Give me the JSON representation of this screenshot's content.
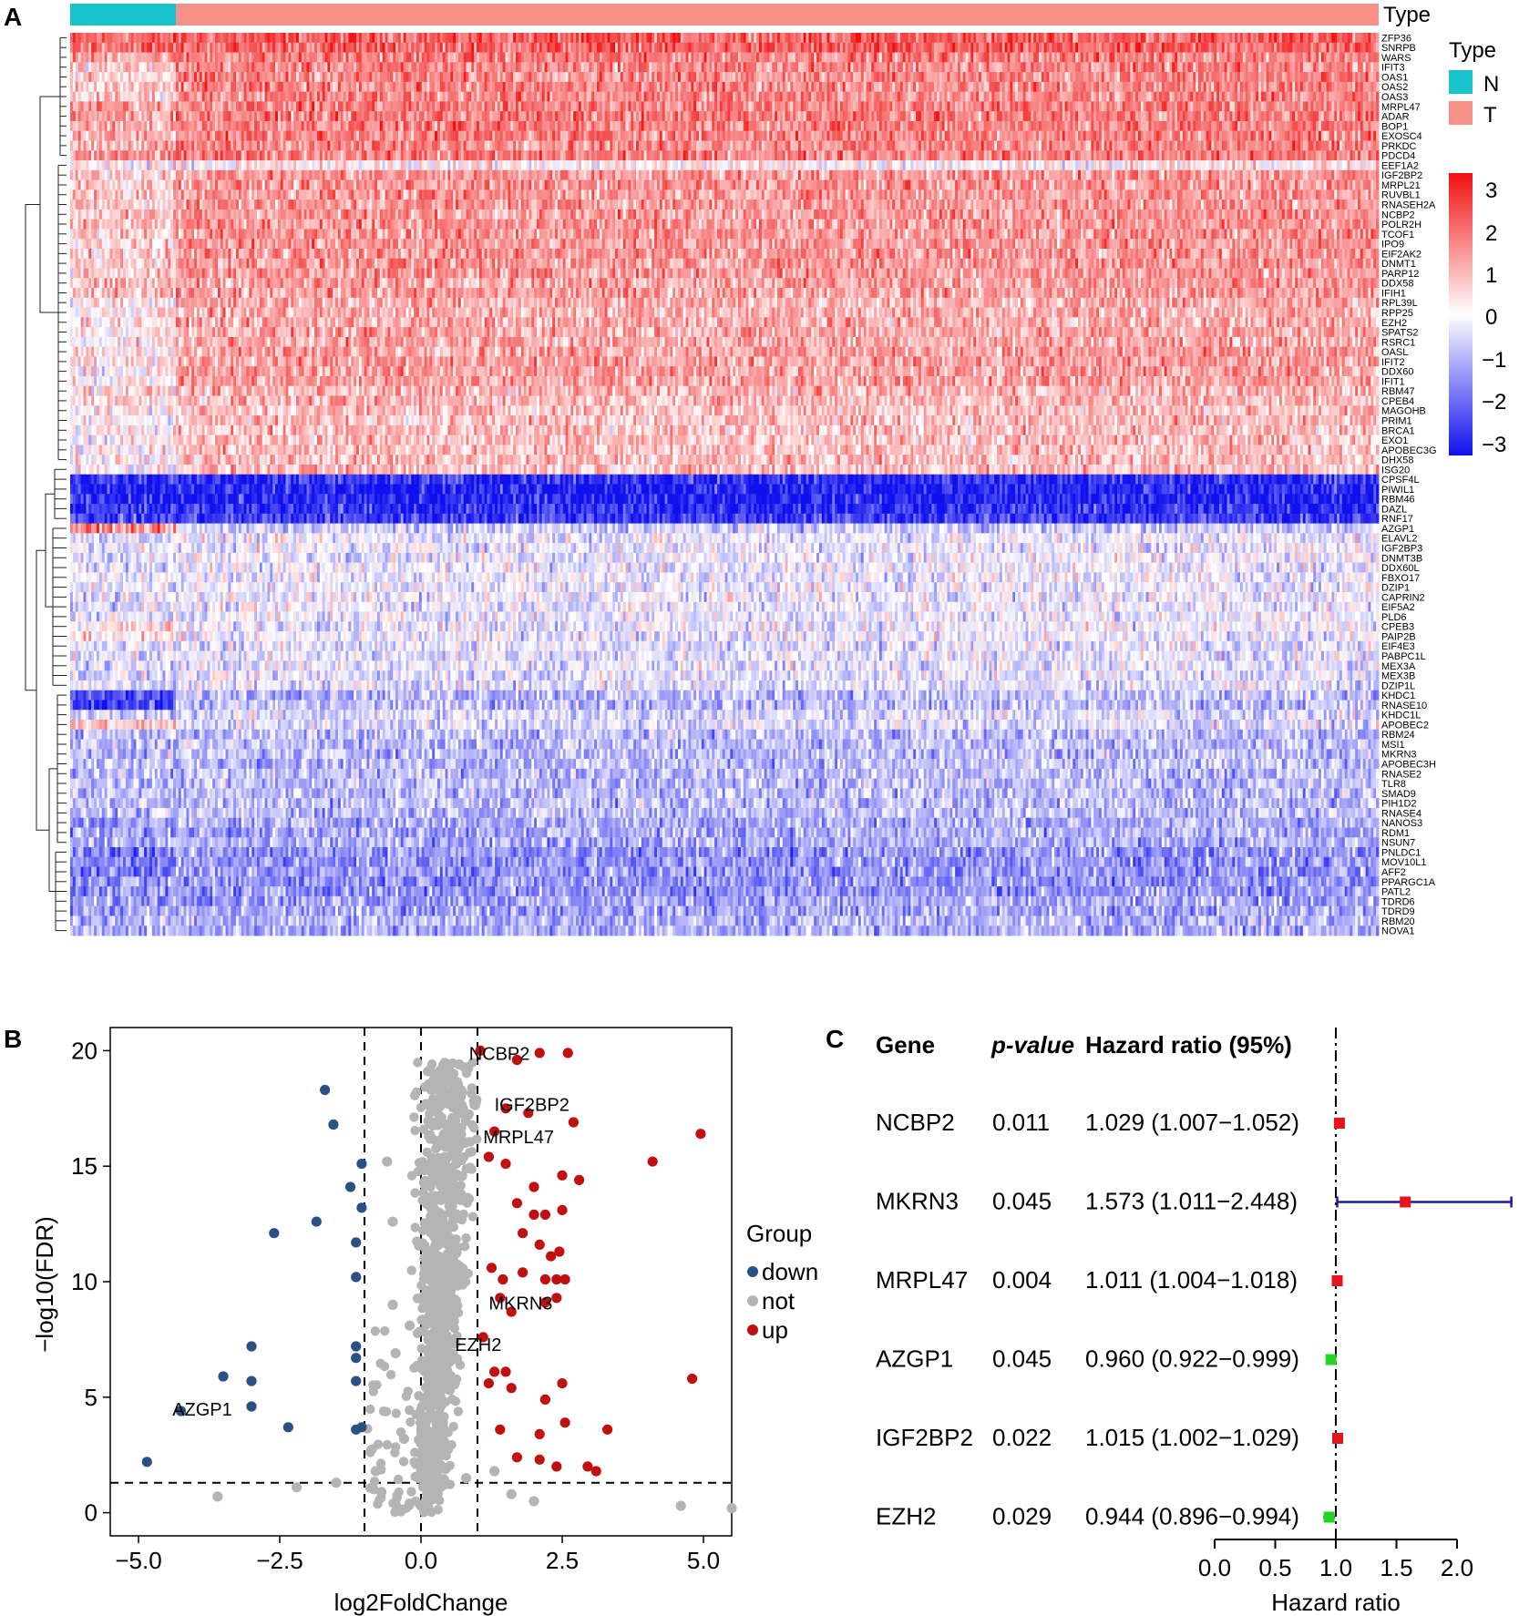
{
  "panels": {
    "a": "A",
    "b": "B",
    "c": "C"
  },
  "heatmap": {
    "type_label": "Type",
    "legend_title": "Type",
    "groups": [
      {
        "key": "N",
        "label": "N",
        "color": "#19c4cf"
      },
      {
        "key": "T",
        "label": "T",
        "color": "#f69089"
      }
    ],
    "colorbar_ticks": [
      "3",
      "2",
      "1",
      "0",
      "−1",
      "−2",
      "−3"
    ],
    "colorbar_colors": {
      "low": "#1010ee",
      "mid": "#ffffff",
      "high": "#f01010"
    },
    "genes": [
      "ZFP36",
      "SNRPB",
      "WARS",
      "IFIT3",
      "OAS1",
      "OAS2",
      "OAS3",
      "MRPL47",
      "ADAR",
      "BOP1",
      "EXOSC4",
      "PRKDC",
      "PDCD4",
      "EEF1A2",
      "IGF2BP2",
      "MRPL21",
      "RUVBL1",
      "RNASEH2A",
      "NCBP2",
      "POLR2H",
      "TCOF1",
      "IPO9",
      "EIF2AK2",
      "DNMT1",
      "PARP12",
      "DDX58",
      "IFIH1",
      "RPL39L",
      "RPP25",
      "EZH2",
      "SPATS2",
      "RSRC1",
      "OASL",
      "IFIT2",
      "DDX60",
      "IFIT1",
      "RBM47",
      "CPEB4",
      "MAGOHB",
      "PRIM1",
      "BRCA1",
      "EXO1",
      "APOBEC3G",
      "DHX58",
      "ISG20",
      "CPSF4L",
      "PIWIL1",
      "RBM46",
      "DAZL",
      "RNF17",
      "AZGP1",
      "ELAVL2",
      "IGF2BP3",
      "DNMT3B",
      "DDX60L",
      "FBXO17",
      "DZIP1",
      "CAPRIN2",
      "EIF5A2",
      "PLD6",
      "CPEB3",
      "PAIP2B",
      "EIF4E3",
      "PABPC1L",
      "MEX3A",
      "MEX3B",
      "DZIP1L",
      "KHDC1",
      "RNASE10",
      "KHDC1L",
      "APOBEC2",
      "RBM24",
      "MSI1",
      "MKRN3",
      "APOBEC3H",
      "RNASE2",
      "TLR8",
      "SMAD9",
      "PIH1D2",
      "RNASE4",
      "NANOS3",
      "RDM1",
      "NSUN7",
      "PNLDC1",
      "MOV10L1",
      "AFF2",
      "PPARGC1A",
      "PATL2",
      "TDRD6",
      "TDRD9",
      "RBM20",
      "NOVA1"
    ]
  },
  "chart_data": [
    {
      "type": "heatmap",
      "n_normal_samples": 40,
      "n_tumor_samples": 460,
      "rows": [
        "ZFP36",
        "SNRPB",
        "WARS",
        "IFIT3",
        "OAS1",
        "OAS2",
        "OAS3",
        "MRPL47",
        "ADAR",
        "BOP1",
        "EXOSC4",
        "PRKDC",
        "PDCD4",
        "EEF1A2",
        "IGF2BP2",
        "MRPL21",
        "RUVBL1",
        "RNASEH2A",
        "NCBP2",
        "POLR2H",
        "TCOF1",
        "IPO9",
        "EIF2AK2",
        "DNMT1",
        "PARP12",
        "DDX58",
        "IFIH1",
        "RPL39L",
        "RPP25",
        "EZH2",
        "SPATS2",
        "RSRC1",
        "OASL",
        "IFIT2",
        "DDX60",
        "IFIT1",
        "RBM47",
        "CPEB4",
        "MAGOHB",
        "PRIM1",
        "BRCA1",
        "EXO1",
        "APOBEC3G",
        "DHX58",
        "ISG20",
        "CPSF4L",
        "PIWIL1",
        "RBM46",
        "DAZL",
        "RNF17",
        "AZGP1",
        "ELAVL2",
        "IGF2BP3",
        "DNMT3B",
        "DDX60L",
        "FBXO17",
        "DZIP1",
        "CAPRIN2",
        "EIF5A2",
        "PLD6",
        "CPEB3",
        "PAIP2B",
        "EIF4E3",
        "PABPC1L",
        "MEX3A",
        "MEX3B",
        "DZIP1L",
        "KHDC1",
        "RNASE10",
        "KHDC1L",
        "APOBEC2",
        "RBM24",
        "MSI1",
        "MKRN3",
        "APOBEC3H",
        "RNASE2",
        "TLR8",
        "SMAD9",
        "PIH1D2",
        "RNASE4",
        "NANOS3",
        "RDM1",
        "NSUN7",
        "PNLDC1",
        "MOV10L1",
        "AFF2",
        "PPARGC1A",
        "PATL2",
        "TDRD6",
        "TDRD9",
        "RBM20",
        "NOVA1"
      ],
      "row_scores_normal": [
        1.8,
        1.9,
        1.2,
        0.6,
        0.6,
        0.6,
        0.6,
        1.2,
        1.2,
        1.0,
        1.0,
        1.0,
        1.3,
        0.2,
        0.7,
        0.7,
        0.7,
        0.7,
        0.7,
        0.7,
        0.7,
        0.7,
        0.7,
        0.7,
        0.7,
        0.7,
        0.7,
        0.4,
        0.4,
        0.4,
        0.3,
        0.2,
        0.2,
        0.2,
        0.2,
        0.2,
        0.5,
        0.6,
        0.2,
        0.1,
        0.1,
        0.1,
        0.1,
        0.1,
        0.1,
        -2.6,
        -2.8,
        -2.8,
        -2.6,
        -2.4,
        1.4,
        -0.3,
        -0.3,
        -0.3,
        -0.3,
        -0.3,
        -0.3,
        -0.3,
        -0.3,
        -0.3,
        0.4,
        0.4,
        -0.4,
        -0.4,
        -0.4,
        -0.4,
        -0.3,
        -2.3,
        -2.3,
        -0.6,
        0.7,
        -0.8,
        -0.8,
        -0.8,
        -0.8,
        -0.8,
        -0.8,
        -0.8,
        -0.8,
        -0.8,
        -1.2,
        -1.2,
        -1.0,
        -1.6,
        -1.6,
        -1.6,
        -1.4,
        -1.4,
        -1.2,
        -1.2,
        -0.9,
        -1.0
      ],
      "row_scores_tumor": [
        2.0,
        1.9,
        1.6,
        1.5,
        1.5,
        1.5,
        1.5,
        1.6,
        1.6,
        1.6,
        1.6,
        1.5,
        1.6,
        0.2,
        1.3,
        1.3,
        1.3,
        1.3,
        1.3,
        1.3,
        1.3,
        1.3,
        1.3,
        1.3,
        1.3,
        1.2,
        1.2,
        1.0,
        1.0,
        1.0,
        1.1,
        1.1,
        1.2,
        1.2,
        1.2,
        1.2,
        0.9,
        0.9,
        0.8,
        0.8,
        0.8,
        0.8,
        0.8,
        0.8,
        0.8,
        -2.6,
        -2.8,
        -2.8,
        -2.6,
        -2.4,
        -0.6,
        -0.2,
        -0.2,
        -0.2,
        -0.2,
        -0.2,
        -0.2,
        -0.2,
        -0.2,
        -0.2,
        -0.2,
        -0.2,
        -0.3,
        -0.3,
        -0.3,
        -0.3,
        -0.3,
        -0.8,
        -0.8,
        -0.4,
        -0.4,
        -0.8,
        -0.8,
        -0.8,
        -0.8,
        -0.8,
        -0.8,
        -0.8,
        -0.8,
        -0.8,
        -1.0,
        -1.0,
        -1.0,
        -1.3,
        -1.3,
        -1.3,
        -1.3,
        -1.3,
        -1.1,
        -1.1,
        -0.9,
        -1.0
      ],
      "color_range": [
        -3,
        3
      ],
      "legend_title": "Type",
      "legend": [
        "N",
        "T"
      ]
    },
    {
      "type": "scatter",
      "title": "",
      "xlabel": "log2FoldChange",
      "ylabel": "−log10(FDR)",
      "xlim": [
        -5.5,
        5.5
      ],
      "ylim": [
        -1,
        21
      ],
      "xticks": [
        -5.0,
        -2.5,
        0.0,
        2.5,
        5.0
      ],
      "xtick_labels": [
        "−5.0",
        "−2.5",
        "0.0",
        "2.5",
        "5.0"
      ],
      "yticks": [
        0,
        5,
        10,
        15,
        20
      ],
      "ytick_labels": [
        "0",
        "5",
        "10",
        "15",
        "20"
      ],
      "vlines": [
        -1,
        0,
        1
      ],
      "hline": 1.3,
      "legend_title": "Group",
      "legend": [
        "down",
        "not",
        "up"
      ],
      "colors": {
        "down": "#2b5184",
        "not": "#b4b4b4",
        "up": "#c01010"
      },
      "series": [
        {
          "name": "down",
          "points": [
            [
              -4.85,
              2.2
            ],
            [
              -4.25,
              4.4
            ],
            [
              -3.5,
              5.9
            ],
            [
              -3.0,
              7.2
            ],
            [
              -3.0,
              5.7
            ],
            [
              -3.0,
              4.6
            ],
            [
              -2.6,
              12.1
            ],
            [
              -2.35,
              3.7
            ],
            [
              -1.85,
              12.6
            ],
            [
              -1.7,
              18.3
            ],
            [
              -1.55,
              16.8
            ],
            [
              -1.25,
              14.1
            ],
            [
              -1.15,
              6.7
            ],
            [
              -1.15,
              11.7
            ],
            [
              -1.15,
              10.2
            ],
            [
              -1.15,
              5.7
            ],
            [
              -1.15,
              3.6
            ],
            [
              -1.15,
              7.2
            ],
            [
              -1.05,
              13.2
            ],
            [
              -1.05,
              3.7
            ],
            [
              -1.05,
              15.1
            ]
          ]
        },
        {
          "name": "not",
          "points": [
            [
              -3.6,
              0.7
            ],
            [
              -2.2,
              1.1
            ],
            [
              -1.5,
              1.3
            ],
            [
              -0.8,
              1.8
            ],
            [
              -0.6,
              15.2
            ],
            [
              -0.5,
              12.6
            ],
            [
              -0.5,
              9.0
            ],
            [
              -0.45,
              6.9
            ],
            [
              -0.3,
              3.2
            ],
            [
              -0.2,
              8.1
            ],
            [
              0.1,
              1.1
            ],
            [
              4.6,
              0.3
            ],
            [
              5.5,
              0.2
            ],
            [
              1.6,
              0.8
            ],
            [
              2.0,
              0.5
            ],
            [
              -0.2,
              0.4
            ],
            [
              -0.7,
              0.9
            ],
            [
              0.8,
              1.5
            ],
            [
              1.3,
              1.8
            ]
          ]
        },
        {
          "name": "up",
          "points": [
            [
              1.05,
              20.0
            ],
            [
              1.3,
              16.5
            ],
            [
              1.5,
              17.5
            ],
            [
              1.7,
              19.6
            ],
            [
              1.9,
              17.3
            ],
            [
              2.1,
              19.9
            ],
            [
              2.6,
              19.9
            ],
            [
              2.7,
              16.9
            ],
            [
              4.1,
              15.2
            ],
            [
              4.95,
              16.4
            ],
            [
              1.2,
              15.4
            ],
            [
              1.5,
              15.1
            ],
            [
              2.0,
              14.1
            ],
            [
              2.5,
              14.6
            ],
            [
              2.8,
              14.4
            ],
            [
              1.7,
              13.4
            ],
            [
              2.0,
              12.9
            ],
            [
              2.2,
              12.9
            ],
            [
              2.5,
              13.1
            ],
            [
              1.8,
              12.1
            ],
            [
              2.1,
              11.6
            ],
            [
              2.3,
              11.1
            ],
            [
              2.45,
              11.3
            ],
            [
              1.25,
              10.6
            ],
            [
              1.45,
              10.1
            ],
            [
              1.8,
              10.4
            ],
            [
              2.2,
              10.1
            ],
            [
              2.4,
              10.1
            ],
            [
              2.55,
              10.1
            ],
            [
              1.4,
              9.3
            ],
            [
              1.6,
              8.7
            ],
            [
              2.2,
              9.1
            ],
            [
              2.4,
              9.3
            ],
            [
              1.1,
              7.6
            ],
            [
              1.3,
              6.1
            ],
            [
              1.5,
              6.1
            ],
            [
              1.2,
              5.6
            ],
            [
              1.6,
              5.4
            ],
            [
              2.5,
              5.6
            ],
            [
              2.2,
              4.9
            ],
            [
              1.4,
              3.6
            ],
            [
              2.1,
              3.4
            ],
            [
              2.55,
              3.9
            ],
            [
              3.3,
              3.6
            ],
            [
              4.8,
              5.8
            ],
            [
              1.7,
              2.4
            ],
            [
              2.1,
              2.3
            ],
            [
              2.4,
              2.0
            ],
            [
              2.95,
              2.0
            ],
            [
              3.1,
              1.8
            ]
          ]
        }
      ],
      "annotations": [
        {
          "label": "NCBP2",
          "x": 0.85,
          "y": 19.6
        },
        {
          "label": "IGF2BP2",
          "x": 1.3,
          "y": 17.4
        },
        {
          "label": "MRPL47",
          "x": 1.1,
          "y": 16.0
        },
        {
          "label": "MKRN3",
          "x": 1.2,
          "y": 8.8
        },
        {
          "label": "EZH2",
          "x": 0.6,
          "y": 7.0
        },
        {
          "label": "AZGP1",
          "x": -4.4,
          "y": 4.2
        }
      ]
    },
    {
      "type": "forest",
      "title": "",
      "columns": [
        "Gene",
        "p-value",
        "Hazard ratio (95%)"
      ],
      "xlabel": "Hazard ratio",
      "xlim": [
        0,
        2.5
      ],
      "xticks": [
        0.0,
        0.5,
        1.0,
        1.5,
        2.0
      ],
      "xtick_labels": [
        "0.0",
        "0.5",
        "1.0",
        "1.5",
        "2.0"
      ],
      "reference": 1.0,
      "rows": [
        {
          "gene": "NCBP2",
          "p": "0.011",
          "hr_text": "1.029 (1.007−1.052)",
          "hr": 1.029,
          "lo": 1.007,
          "hi": 1.052,
          "color": "#e8141c"
        },
        {
          "gene": "MKRN3",
          "p": "0.045",
          "hr_text": "1.573 (1.011−2.448)",
          "hr": 1.573,
          "lo": 1.011,
          "hi": 2.448,
          "color": "#e8141c"
        },
        {
          "gene": "MRPL47",
          "p": "0.004",
          "hr_text": "1.011 (1.004−1.018)",
          "hr": 1.011,
          "lo": 1.004,
          "hi": 1.018,
          "color": "#e8141c"
        },
        {
          "gene": "AZGP1",
          "p": "0.045",
          "hr_text": "0.960 (0.922−0.999)",
          "hr": 0.96,
          "lo": 0.922,
          "hi": 0.999,
          "color": "#22d522"
        },
        {
          "gene": "IGF2BP2",
          "p": "0.022",
          "hr_text": "1.015 (1.002−1.029)",
          "hr": 1.015,
          "lo": 1.002,
          "hi": 1.029,
          "color": "#e8141c"
        },
        {
          "gene": "EZH2",
          "p": "0.029",
          "hr_text": "0.944 (0.896−0.994)",
          "hr": 0.944,
          "lo": 0.896,
          "hi": 0.994,
          "color": "#22d522"
        }
      ]
    }
  ]
}
